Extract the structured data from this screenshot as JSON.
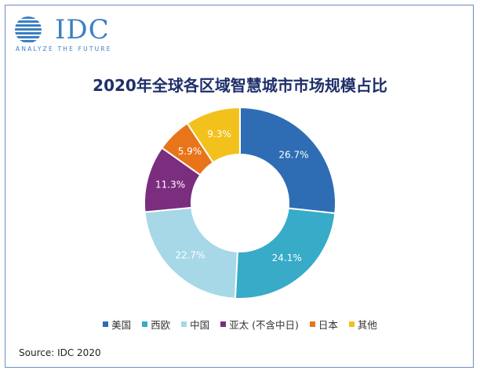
{
  "logo": {
    "wordmark": "IDC",
    "tagline": "ANALYZE THE FUTURE"
  },
  "title": "2020年全球各区域智慧城市市场规模占比",
  "source": "Source: IDC 2020",
  "colors": {
    "frame": "#6a8fbf",
    "title": "#1f2f6a",
    "logo": "#3b7fc4"
  },
  "chart_data": {
    "type": "pie",
    "donut": true,
    "title": "2020年全球各区域智慧城市市场规模占比",
    "legend_position": "bottom",
    "slices": [
      {
        "name": "美国",
        "value": 26.7,
        "label": "26.7%",
        "color": "#2e6db4"
      },
      {
        "name": "西欧",
        "value": 24.1,
        "label": "24.1%",
        "color": "#37abc8"
      },
      {
        "name": "中国",
        "value": 22.7,
        "label": "22.7%",
        "color": "#a6d8e8"
      },
      {
        "name": "亚太 (不含中日)",
        "value": 11.3,
        "label": "11.3%",
        "color": "#7b2d7e"
      },
      {
        "name": "日本",
        "value": 5.9,
        "label": "5.9%",
        "color": "#e8751a"
      },
      {
        "name": "其他",
        "value": 9.3,
        "label": "9.3%",
        "color": "#f3c11b"
      }
    ]
  }
}
